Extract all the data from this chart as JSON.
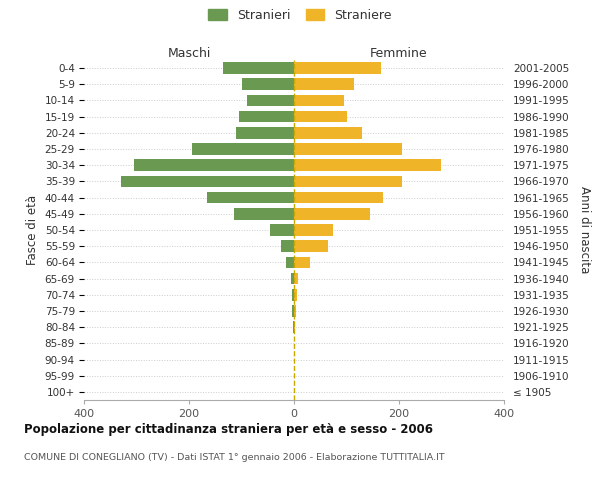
{
  "age_groups": [
    "100+",
    "95-99",
    "90-94",
    "85-89",
    "80-84",
    "75-79",
    "70-74",
    "65-69",
    "60-64",
    "55-59",
    "50-54",
    "45-49",
    "40-44",
    "35-39",
    "30-34",
    "25-29",
    "20-24",
    "15-19",
    "10-14",
    "5-9",
    "0-4"
  ],
  "birth_years": [
    "≤ 1905",
    "1906-1910",
    "1911-1915",
    "1916-1920",
    "1921-1925",
    "1926-1930",
    "1931-1935",
    "1936-1940",
    "1941-1945",
    "1946-1950",
    "1951-1955",
    "1956-1960",
    "1961-1965",
    "1966-1970",
    "1971-1975",
    "1976-1980",
    "1981-1985",
    "1986-1990",
    "1991-1995",
    "1996-2000",
    "2001-2005"
  ],
  "males": [
    0,
    0,
    0,
    0,
    1,
    3,
    4,
    5,
    15,
    25,
    45,
    115,
    165,
    330,
    305,
    195,
    110,
    105,
    90,
    100,
    135
  ],
  "females": [
    0,
    0,
    0,
    0,
    2,
    4,
    5,
    8,
    30,
    65,
    75,
    145,
    170,
    205,
    280,
    205,
    130,
    100,
    95,
    115,
    165
  ],
  "male_color": "#6a9a52",
  "female_color": "#f0b429",
  "background_color": "#ffffff",
  "grid_color": "#cccccc",
  "center_line_color": "#c8a800",
  "title": "Popolazione per cittadinanza straniera per età e sesso - 2006",
  "subtitle": "COMUNE DI CONEGLIANO (TV) - Dati ISTAT 1° gennaio 2006 - Elaborazione TUTTITALIA.IT",
  "label_maschi": "Maschi",
  "label_femmine": "Femmine",
  "ylabel_left": "Fasce di età",
  "ylabel_right": "Anni di nascita",
  "xlim": 400,
  "legend_stranieri": "Stranieri",
  "legend_straniere": "Straniere"
}
